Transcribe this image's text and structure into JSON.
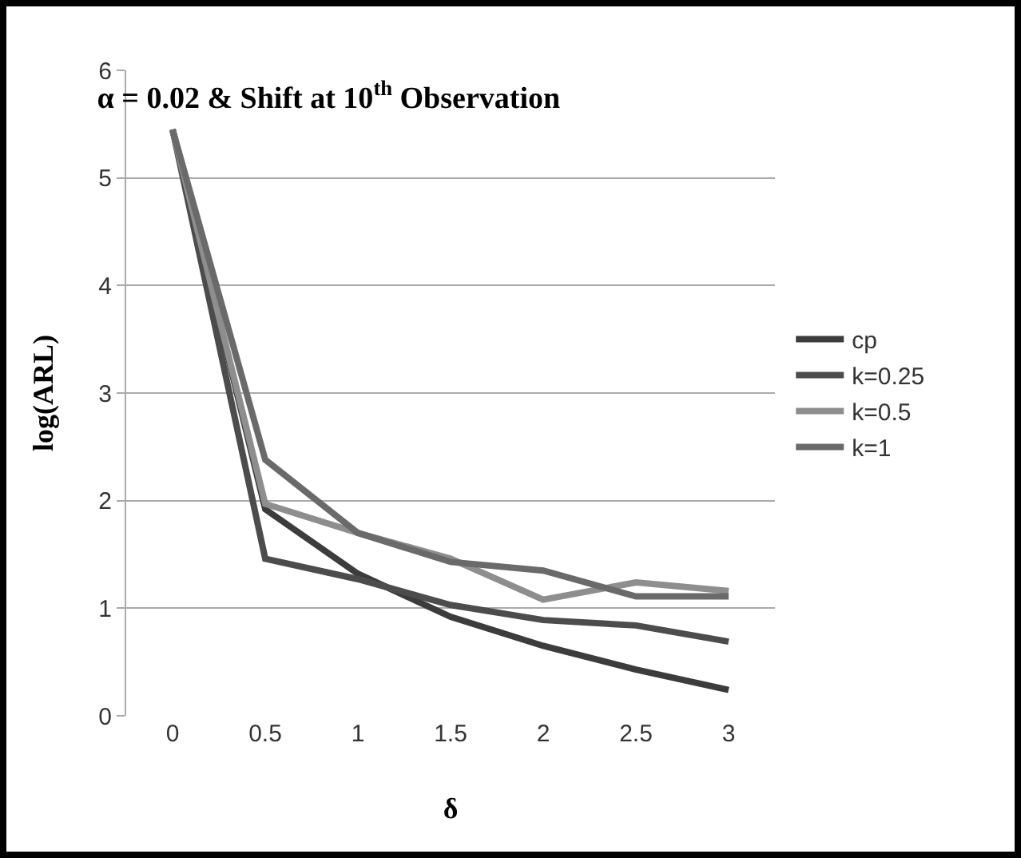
{
  "chart_data": {
    "type": "line",
    "title": "α = 0.02 & Shift at 10$^{th}$ Observation",
    "xlabel": "δ",
    "ylabel": "log(ARL)",
    "categories": [
      "0",
      "0.5",
      "1",
      "1.5",
      "2",
      "2.5",
      "3"
    ],
    "series": [
      {
        "name": "cp",
        "color": "#3c3c3c",
        "values": [
          5.45,
          1.92,
          1.32,
          0.92,
          0.65,
          0.43,
          0.24
        ]
      },
      {
        "name": "k=0.25",
        "color": "#4c4c4c",
        "values": [
          5.45,
          1.46,
          1.27,
          1.03,
          0.89,
          0.84,
          0.69
        ]
      },
      {
        "name": "k=0.5",
        "color": "#8e8e8e",
        "values": [
          5.45,
          1.97,
          1.7,
          1.46,
          1.08,
          1.24,
          1.16
        ]
      },
      {
        "name": "k=1",
        "color": "#6a6a6a",
        "values": [
          5.45,
          2.38,
          1.7,
          1.43,
          1.35,
          1.11,
          1.11
        ]
      }
    ],
    "ylim": [
      0,
      6
    ],
    "yticks": [
      0,
      1,
      2,
      3,
      4,
      5,
      6
    ],
    "grid": "y",
    "legend": "right",
    "marker": "none",
    "line_style": "solid"
  }
}
